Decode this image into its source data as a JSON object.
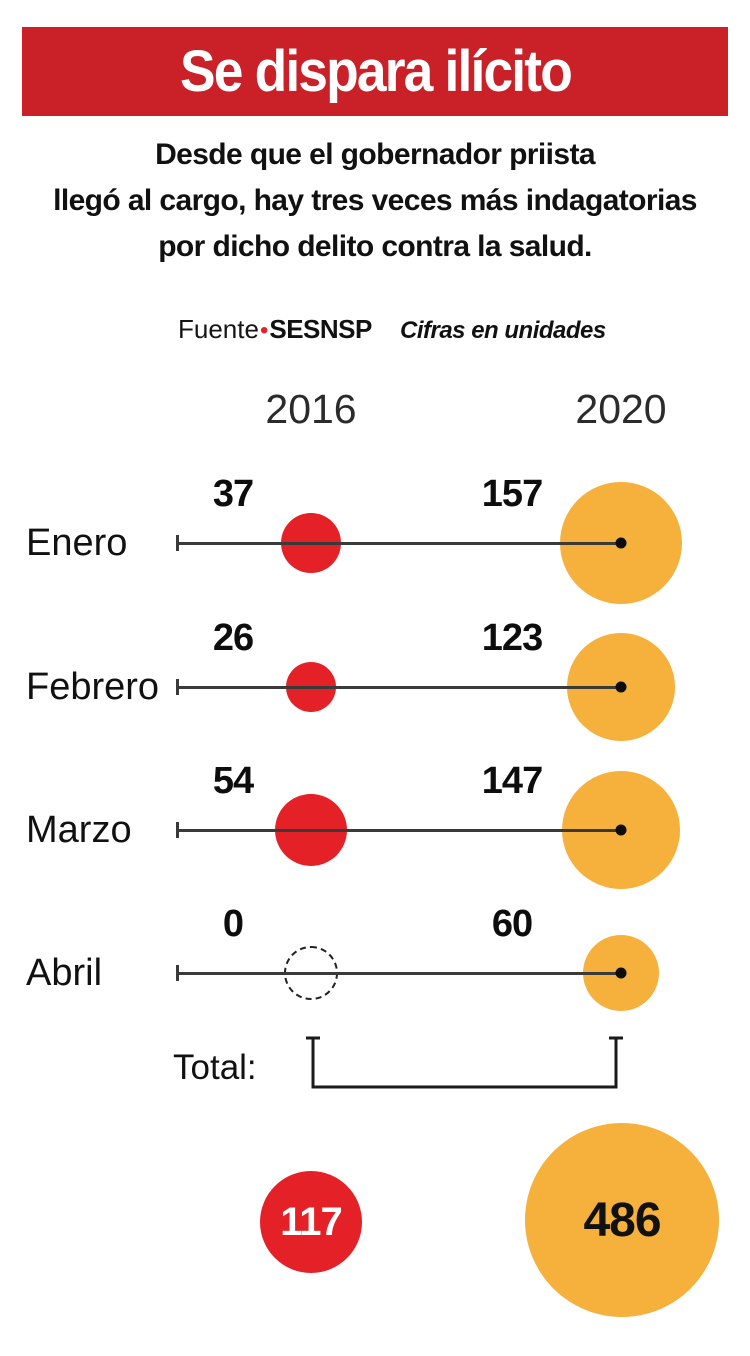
{
  "header": {
    "title": "Se dispara ilícito"
  },
  "subtitle": {
    "line1": "Desde que el gobernador priista",
    "line2": "llegó al cargo, hay tres veces más indagatorias",
    "line3": "por dicho delito contra la salud."
  },
  "source": {
    "label": "Fuente",
    "bullet": "•",
    "name": "SESNSP",
    "units_note": "Cifras en unidades"
  },
  "colors": {
    "banner_red": "#c92127",
    "bubble_red": "#e42127",
    "bubble_yellow": "#f6b03c",
    "line": "#3a3a3a"
  },
  "chart_data": {
    "type": "bubble",
    "title": "Se dispara ilícito",
    "subtitle": "Desde que el gobernador priista llegó al cargo, hay tres veces más indagatorias por dicho delito contra la salud.",
    "units": "Cifras en unidades",
    "source": "SESNSP",
    "columns": [
      "2016",
      "2020"
    ],
    "categories": [
      "Enero",
      "Febrero",
      "Marzo",
      "Abril"
    ],
    "series": [
      {
        "name": "2016",
        "color": "#e42127",
        "values": [
          37,
          26,
          54,
          0
        ]
      },
      {
        "name": "2020",
        "color": "#f6b03c",
        "values": [
          157,
          123,
          147,
          60
        ]
      }
    ],
    "totals": {
      "label": "Total:",
      "values": [
        117,
        486
      ]
    },
    "layout_hint": "bubble area proportional to value; zero shown as dashed outline circle"
  }
}
